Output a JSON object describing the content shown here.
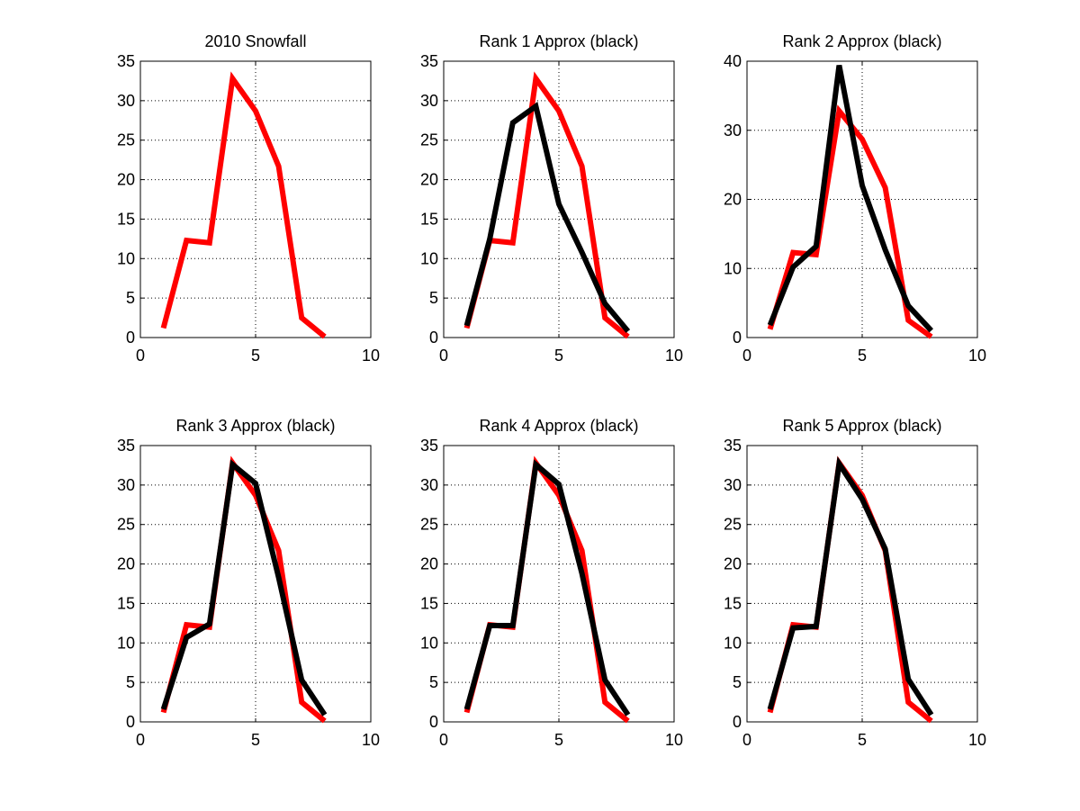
{
  "chart_data": [
    {
      "type": "line",
      "title": "2010 Snowfall",
      "xlim": [
        0,
        10
      ],
      "ylim": [
        0,
        35
      ],
      "xticks": [
        0,
        5,
        10
      ],
      "yticks": [
        0,
        5,
        10,
        15,
        20,
        25,
        30,
        35
      ],
      "grid": true,
      "x": [
        1,
        2,
        3,
        4,
        5,
        6,
        7,
        8
      ],
      "series": [
        {
          "color": "#ff0000",
          "values": [
            1.2,
            12.3,
            12.0,
            32.8,
            28.7,
            21.7,
            2.5,
            0.1
          ]
        }
      ]
    },
    {
      "type": "line",
      "title": "Rank 1 Approx (black)",
      "xlim": [
        0,
        10
      ],
      "ylim": [
        0,
        35
      ],
      "xticks": [
        0,
        5,
        10
      ],
      "yticks": [
        0,
        5,
        10,
        15,
        20,
        25,
        30,
        35
      ],
      "grid": true,
      "x": [
        1,
        2,
        3,
        4,
        5,
        6,
        7,
        8
      ],
      "series": [
        {
          "color": "#ff0000",
          "values": [
            1.2,
            12.3,
            12.0,
            32.8,
            28.7,
            21.7,
            2.5,
            0.1
          ]
        },
        {
          "color": "#000000",
          "values": [
            1.5,
            12.5,
            27.2,
            29.3,
            16.9,
            10.8,
            4.3,
            0.8
          ]
        }
      ]
    },
    {
      "type": "line",
      "title": "Rank 2 Approx (black)",
      "xlim": [
        0,
        10
      ],
      "ylim": [
        0,
        40
      ],
      "xticks": [
        0,
        5,
        10
      ],
      "yticks": [
        0,
        10,
        20,
        30,
        40
      ],
      "grid": true,
      "x": [
        1,
        2,
        3,
        4,
        5,
        6,
        7,
        8
      ],
      "series": [
        {
          "color": "#ff0000",
          "values": [
            1.2,
            12.3,
            12.0,
            32.8,
            28.7,
            21.7,
            2.5,
            0.1
          ]
        },
        {
          "color": "#000000",
          "values": [
            1.8,
            10.2,
            13.2,
            39.4,
            22.0,
            12.7,
            4.6,
            1.0
          ]
        }
      ]
    },
    {
      "type": "line",
      "title": "Rank 3 Approx (black)",
      "xlim": [
        0,
        10
      ],
      "ylim": [
        0,
        35
      ],
      "xticks": [
        0,
        5,
        10
      ],
      "yticks": [
        0,
        5,
        10,
        15,
        20,
        25,
        30,
        35
      ],
      "grid": true,
      "x": [
        1,
        2,
        3,
        4,
        5,
        6,
        7,
        8
      ],
      "series": [
        {
          "color": "#ff0000",
          "values": [
            1.2,
            12.3,
            12.0,
            32.8,
            28.7,
            21.7,
            2.5,
            0.1
          ]
        },
        {
          "color": "#000000",
          "values": [
            1.6,
            10.7,
            12.4,
            32.6,
            30.2,
            18.3,
            5.3,
            0.9
          ]
        }
      ]
    },
    {
      "type": "line",
      "title": "Rank 4 Approx (black)",
      "xlim": [
        0,
        10
      ],
      "ylim": [
        0,
        35
      ],
      "xticks": [
        0,
        5,
        10
      ],
      "yticks": [
        0,
        5,
        10,
        15,
        20,
        25,
        30,
        35
      ],
      "grid": true,
      "x": [
        1,
        2,
        3,
        4,
        5,
        6,
        7,
        8
      ],
      "series": [
        {
          "color": "#ff0000",
          "values": [
            1.2,
            12.3,
            12.0,
            32.8,
            28.7,
            21.7,
            2.5,
            0.1
          ]
        },
        {
          "color": "#000000",
          "values": [
            1.6,
            12.2,
            12.2,
            32.6,
            30.1,
            18.8,
            5.3,
            0.9
          ]
        }
      ]
    },
    {
      "type": "line",
      "title": "Rank 5 Approx (black)",
      "xlim": [
        0,
        10
      ],
      "ylim": [
        0,
        35
      ],
      "xticks": [
        0,
        5,
        10
      ],
      "yticks": [
        0,
        5,
        10,
        15,
        20,
        25,
        30,
        35
      ],
      "grid": true,
      "x": [
        1,
        2,
        3,
        4,
        5,
        6,
        7,
        8
      ],
      "series": [
        {
          "color": "#ff0000",
          "values": [
            1.2,
            12.3,
            12.0,
            32.8,
            28.7,
            21.7,
            2.5,
            0.1
          ]
        },
        {
          "color": "#000000",
          "values": [
            1.6,
            11.9,
            12.1,
            32.7,
            28.2,
            21.9,
            5.4,
            0.9
          ]
        }
      ]
    }
  ]
}
